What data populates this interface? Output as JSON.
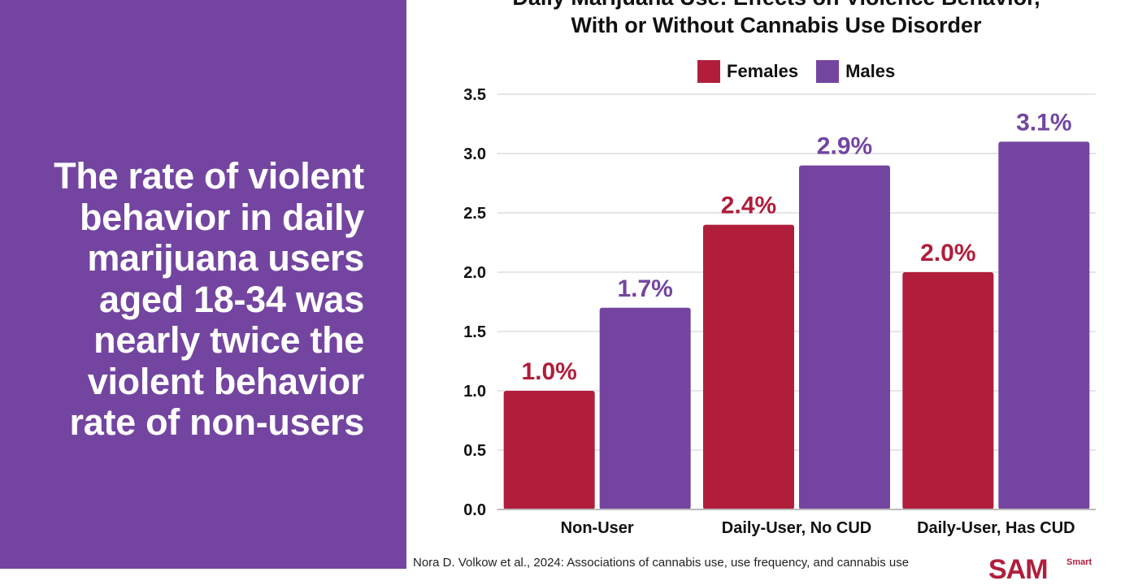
{
  "panel": {
    "headline": "The rate of violent behavior in daily marijuana users aged 18-34 was nearly twice the violent behavior rate of non-users"
  },
  "chart_data": {
    "type": "bar",
    "title_line1": "Daily Marijuana Use: Effects on Violence Behavior,",
    "title_line2": "With or Without Cannabis Use Disorder",
    "categories": [
      "Non-User",
      "Daily-User, No CUD",
      "Daily-User, Has CUD"
    ],
    "series": [
      {
        "name": "Females",
        "color": "#b01e3c",
        "values": [
          1.0,
          2.4,
          2.0
        ],
        "labels": [
          "1.0%",
          "2.4%",
          "2.0%"
        ]
      },
      {
        "name": "Males",
        "color": "#7345a0",
        "values": [
          1.7,
          2.9,
          3.1
        ],
        "labels": [
          "1.7%",
          "2.9%",
          "3.1%"
        ]
      }
    ],
    "ylim": [
      0,
      3.5
    ],
    "yticks": [
      "0.0",
      "0.5",
      "1.0",
      "1.5",
      "2.0",
      "2.5",
      "3.0",
      "3.5"
    ],
    "grid": true,
    "legend_position": "top"
  },
  "source": "Nora D. Volkow et al., 2024: Associations of cannabis use, use frequency, and cannabis use",
  "logo": {
    "text": "SAM",
    "tag": "Smart"
  }
}
